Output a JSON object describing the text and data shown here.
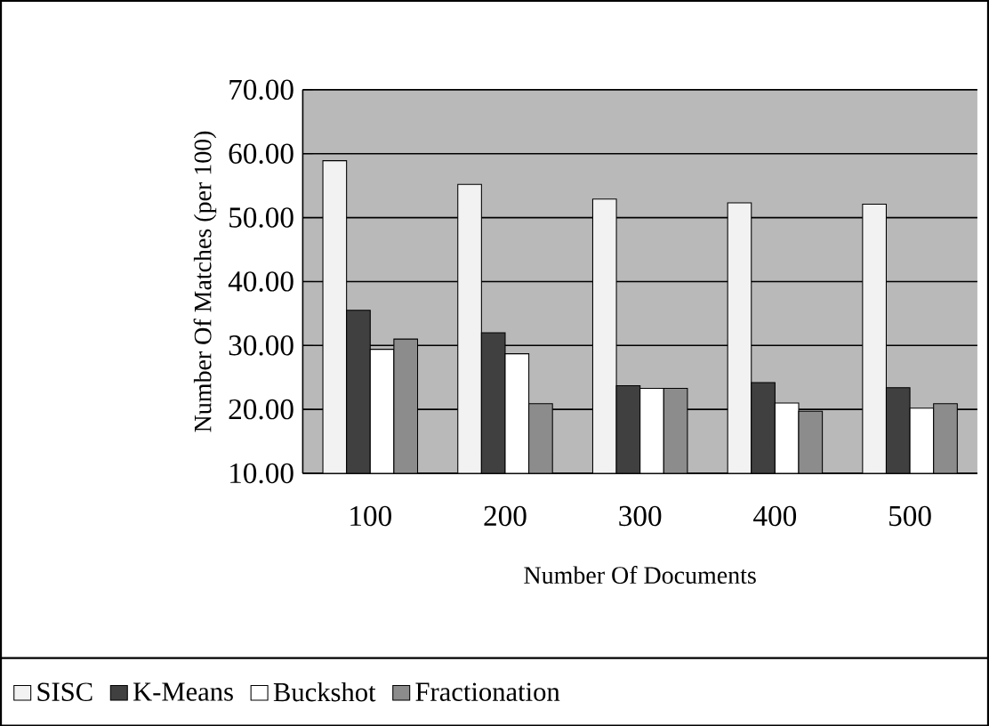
{
  "chart_data": {
    "type": "bar",
    "xlabel": "Number Of Documents",
    "ylabel": "Number Of Matches (per 100)",
    "categories": [
      "100",
      "200",
      "300",
      "400",
      "500"
    ],
    "series": [
      {
        "name": "SISC",
        "color": "#f2f2f2",
        "values": [
          58.9,
          55.2,
          52.9,
          52.3,
          52.1
        ]
      },
      {
        "name": "K-Means",
        "color": "#404040",
        "values": [
          35.5,
          32.0,
          23.7,
          24.2,
          23.4
        ]
      },
      {
        "name": "Buckshot",
        "color": "#ffffff",
        "values": [
          29.4,
          28.7,
          23.3,
          21.0,
          20.2
        ]
      },
      {
        "name": "Fractionation",
        "color": "#8c8c8c",
        "values": [
          31.0,
          20.9,
          23.3,
          19.7,
          20.9
        ]
      }
    ],
    "ylim": [
      10,
      70
    ],
    "yticks": [
      {
        "value": 10,
        "label": "10.00"
      },
      {
        "value": 20,
        "label": "20.00"
      },
      {
        "value": 30,
        "label": "30.00"
      },
      {
        "value": 40,
        "label": "40.00"
      },
      {
        "value": 50,
        "label": "50.00"
      },
      {
        "value": 60,
        "label": "60.00"
      },
      {
        "value": 70,
        "label": "70.00"
      }
    ],
    "grid": "y",
    "legend": "bottom"
  }
}
